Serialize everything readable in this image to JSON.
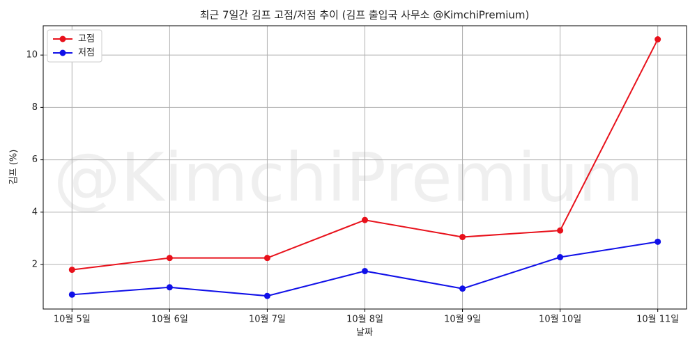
{
  "chart_data": {
    "type": "line",
    "title": "최근 7일간 김프 고점/저점 추이 (김프 출입국 사무소 @KimchiPremium)",
    "watermark": "@KimchiPremium",
    "x_label": "날짜",
    "y_label": "김프 (%)",
    "categories": [
      "10월 5일",
      "10월 6일",
      "10월 7일",
      "10월 8일",
      "10월 9일",
      "10월 10일",
      "10월 11일"
    ],
    "series": [
      {
        "name": "고점",
        "color": "#e8111b",
        "values": [
          1.8,
          2.25,
          2.25,
          3.7,
          3.05,
          3.3,
          10.6
        ]
      },
      {
        "name": "저점",
        "color": "#1010e8",
        "values": [
          0.85,
          1.13,
          0.8,
          1.75,
          1.08,
          2.28,
          2.87
        ]
      }
    ],
    "ylim": [
      0.3,
      11.12
    ],
    "yticks": [
      2,
      4,
      6,
      8,
      10
    ],
    "grid": true,
    "legend": "upper left"
  }
}
